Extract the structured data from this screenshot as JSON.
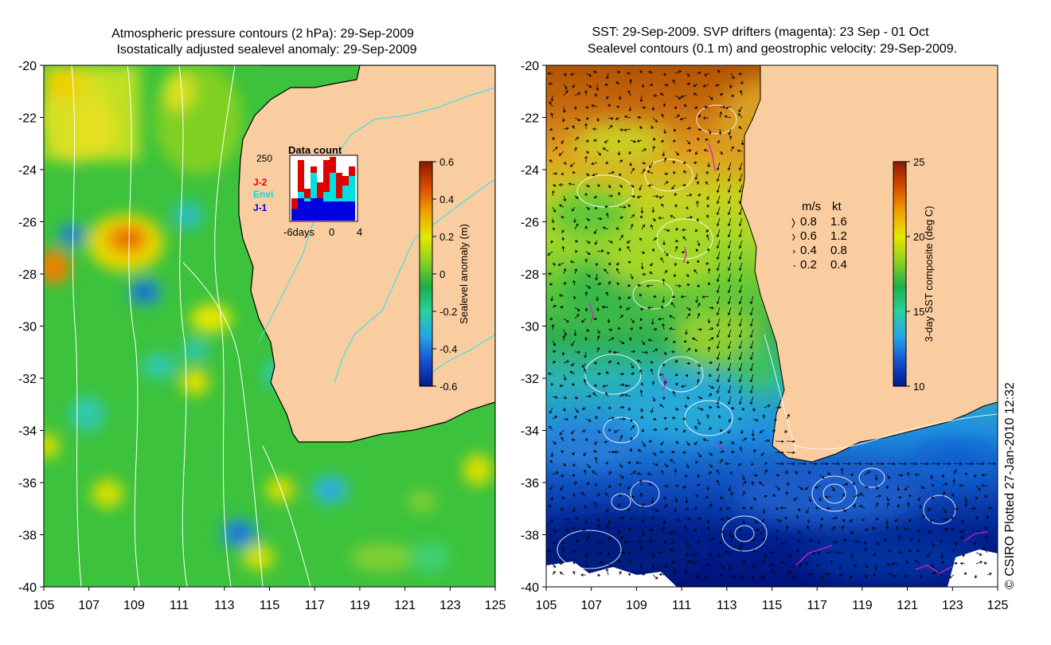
{
  "left": {
    "title1": "Atmospheric pressure contours (2 hPa): 29-Sep-2009",
    "title2": "Isostatically adjusted sealevel anomaly: 29-Sep-2009",
    "colorbar": {
      "label": "Sealevel anomaly (m)",
      "ticks": [
        "0.6",
        "0.4",
        "0.2",
        "0",
        "-0.2",
        "-0.4",
        "-0.6"
      ],
      "colors": [
        "#8b1a00",
        "#d84a00",
        "#f2a000",
        "#e6e600",
        "#8fd21e",
        "#1bb04a",
        "#2ad0a0",
        "#24a6e6",
        "#1850d0",
        "#001a8c"
      ]
    },
    "inset": {
      "title": "Data count",
      "ymax": "250",
      "legend": [
        {
          "label": "J-2",
          "color": "#e00000"
        },
        {
          "label": "Envi",
          "color": "#00e0e0"
        },
        {
          "label": "J-1",
          "color": "#0000e0"
        }
      ],
      "xticks": [
        "-6days",
        "0",
        "4"
      ],
      "bars": [
        {
          "j1": 0.18,
          "envi": 0.0,
          "j2": 0.35
        },
        {
          "j1": 0.35,
          "envi": 0.45,
          "j2": 0.95
        },
        {
          "j1": 0.3,
          "envi": 0.35,
          "j2": 0.5
        },
        {
          "j1": 0.35,
          "envi": 0.75,
          "j2": 0.85
        },
        {
          "j1": 0.35,
          "envi": 0.3,
          "j2": 0.6
        },
        {
          "j1": 0.3,
          "envi": 0.45,
          "j2": 0.95
        },
        {
          "j1": 0.3,
          "envi": 0.75,
          "j2": 1.0
        },
        {
          "j1": 0.3,
          "envi": 0.35,
          "j2": 0.75
        },
        {
          "j1": 0.3,
          "envi": 0.55,
          "j2": 0.7
        },
        {
          "j1": 0.3,
          "envi": 0.7,
          "j2": 0.85
        }
      ]
    }
  },
  "right": {
    "title1": "SST: 29-Sep-2009. SVP drifters (magenta): 23 Sep - 01 Oct",
    "title2": "Sealevel contours (0.1 m) and geostrophic velocity: 29-Sep-2009.",
    "colorbar": {
      "label": "3-day SST composite (deg C)",
      "ticks": [
        "25",
        "20",
        "15",
        "10"
      ],
      "colors": [
        "#8b1a00",
        "#d84a00",
        "#f2a000",
        "#e6e600",
        "#8fd21e",
        "#1bb04a",
        "#2ad0a0",
        "#24a6e6",
        "#1850d0",
        "#001a8c"
      ]
    },
    "velocity_legend": {
      "header_ms": "m/s",
      "header_kt": "kt",
      "rows": [
        {
          "ms": "0.8",
          "kt": "1.6"
        },
        {
          "ms": "0.6",
          "kt": "1.2"
        },
        {
          "ms": "0.4",
          "kt": "0.8"
        },
        {
          "ms": "0.2",
          "kt": "0.4"
        }
      ]
    }
  },
  "axes": {
    "lat_ticks": [
      "-20",
      "-22",
      "-24",
      "-26",
      "-28",
      "-30",
      "-32",
      "-34",
      "-36",
      "-38",
      "-40"
    ],
    "lon_ticks": [
      "105",
      "107",
      "109",
      "111",
      "113",
      "115",
      "117",
      "119",
      "121",
      "123",
      "125"
    ]
  },
  "credit": "© CSIRO Plotted 27-Jan-2010 12:32",
  "colors": {
    "land": "#facda0",
    "contour": "#ffffff",
    "coast": "#000000",
    "river": "#40e0e0",
    "drifter": "#d020d0"
  }
}
